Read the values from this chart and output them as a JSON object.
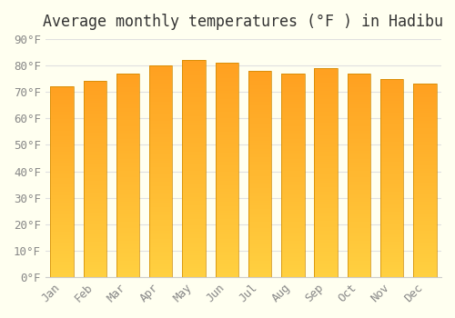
{
  "title": "Average monthly temperatures (°F ) in Hadibu",
  "months": [
    "Jan",
    "Feb",
    "Mar",
    "Apr",
    "May",
    "Jun",
    "Jul",
    "Aug",
    "Sep",
    "Oct",
    "Nov",
    "Dec"
  ],
  "values": [
    72,
    74,
    77,
    80,
    82,
    81,
    78,
    77,
    79,
    77,
    75,
    73
  ],
  "bar_color_bottom": "#FFD040",
  "bar_color_top": "#FFA020",
  "edge_color": "#CC8800",
  "background_color": "#FFFFF0",
  "grid_color": "#E0E0E0",
  "text_color": "#888888",
  "title_color": "#333333",
  "ylim": [
    0,
    90
  ],
  "yticks": [
    0,
    10,
    20,
    30,
    40,
    50,
    60,
    70,
    80,
    90
  ],
  "ytick_labels": [
    "0°F",
    "10°F",
    "20°F",
    "30°F",
    "40°F",
    "50°F",
    "60°F",
    "70°F",
    "80°F",
    "90°F"
  ],
  "title_fontsize": 12,
  "tick_fontsize": 9,
  "font_family": "monospace"
}
